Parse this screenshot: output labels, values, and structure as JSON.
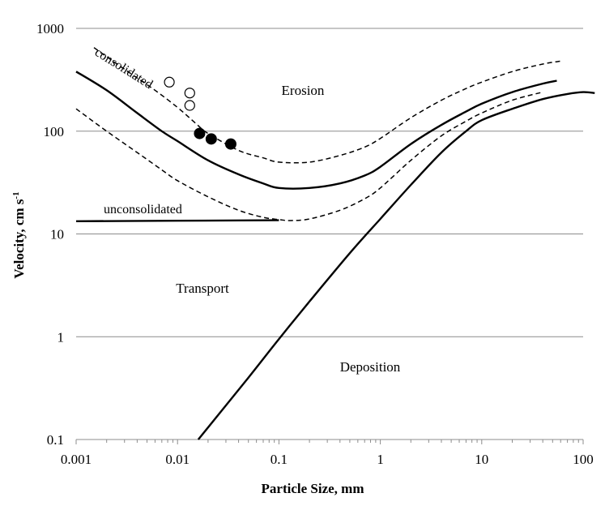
{
  "chart_data": {
    "type": "line",
    "title": "",
    "xlabel": "Particle Size, mm",
    "ylabel_main": "Velocity, cm s",
    "ylabel_sup": "-1",
    "xscale": "log",
    "yscale": "log",
    "xlim": [
      0.001,
      100
    ],
    "ylim": [
      0.1,
      1000
    ],
    "grid": "horizontal",
    "x_ticks": [
      {
        "value": 0.001,
        "label": "0.001"
      },
      {
        "value": 0.01,
        "label": "0.01"
      },
      {
        "value": 0.1,
        "label": "0.1"
      },
      {
        "value": 1,
        "label": "1"
      },
      {
        "value": 10,
        "label": "10"
      },
      {
        "value": 100,
        "label": "100"
      }
    ],
    "y_ticks": [
      {
        "value": 0.1,
        "label": "0.1"
      },
      {
        "value": 1,
        "label": "1"
      },
      {
        "value": 10,
        "label": "10"
      },
      {
        "value": 100,
        "label": "100"
      },
      {
        "value": 1000,
        "label": "1000"
      }
    ],
    "series": [
      {
        "style": "solid",
        "x": [
          0.001,
          0.002,
          0.004,
          0.007,
          0.01,
          0.02,
          0.04,
          0.07,
          0.1,
          0.2,
          0.4,
          0.7,
          1,
          2,
          4,
          7,
          10,
          20,
          40,
          55
        ],
        "y": [
          380,
          250,
          150,
          100,
          80,
          52,
          38,
          31,
          28,
          28,
          31,
          37,
          45,
          75,
          115,
          155,
          185,
          240,
          290,
          310
        ]
      },
      {
        "style": "dashed",
        "x": [
          0.0015,
          0.003,
          0.006,
          0.01,
          0.015,
          0.02,
          0.04,
          0.07,
          0.1,
          0.2,
          0.4,
          0.7,
          1,
          2,
          4,
          7,
          10,
          20,
          40,
          60
        ],
        "y": [
          650,
          400,
          250,
          170,
          120,
          95,
          65,
          55,
          50,
          50,
          58,
          70,
          85,
          135,
          200,
          260,
          300,
          380,
          450,
          480
        ]
      },
      {
        "style": "dashed",
        "x": [
          0.001,
          0.002,
          0.004,
          0.007,
          0.01,
          0.02,
          0.04,
          0.07,
          0.1,
          0.13,
          0.2,
          0.4,
          0.7,
          1,
          2,
          4,
          7,
          10,
          20,
          40
        ],
        "y": [
          165,
          100,
          62,
          42,
          33,
          23,
          17,
          14.5,
          13.8,
          13.5,
          14,
          17,
          22,
          28,
          52,
          90,
          125,
          150,
          200,
          240
        ]
      },
      {
        "style": "solid",
        "x": [
          0.001,
          0.1
        ],
        "y": [
          13.3,
          13.6
        ]
      },
      {
        "style": "solid",
        "x": [
          0.016,
          0.05,
          0.1,
          0.2,
          0.5,
          1,
          2,
          4,
          7,
          10,
          20,
          40,
          70,
          100,
          130
        ],
        "y": [
          0.1,
          0.4,
          0.95,
          2.2,
          6.5,
          14,
          30,
          62,
          100,
          128,
          165,
          205,
          230,
          240,
          235
        ]
      }
    ],
    "points_open": [
      {
        "x": 0.0083,
        "y": 300
      },
      {
        "x": 0.0132,
        "y": 235
      },
      {
        "x": 0.0132,
        "y": 178
      }
    ],
    "points_filled": [
      {
        "x": 0.0165,
        "y": 95
      },
      {
        "x": 0.0215,
        "y": 84
      },
      {
        "x": 0.0335,
        "y": 75
      }
    ],
    "annotations": [
      {
        "text": "Erosion"
      },
      {
        "text": "Transport"
      },
      {
        "text": "Deposition"
      },
      {
        "text": "consolidated"
      },
      {
        "text": "unconsolidated"
      }
    ]
  }
}
